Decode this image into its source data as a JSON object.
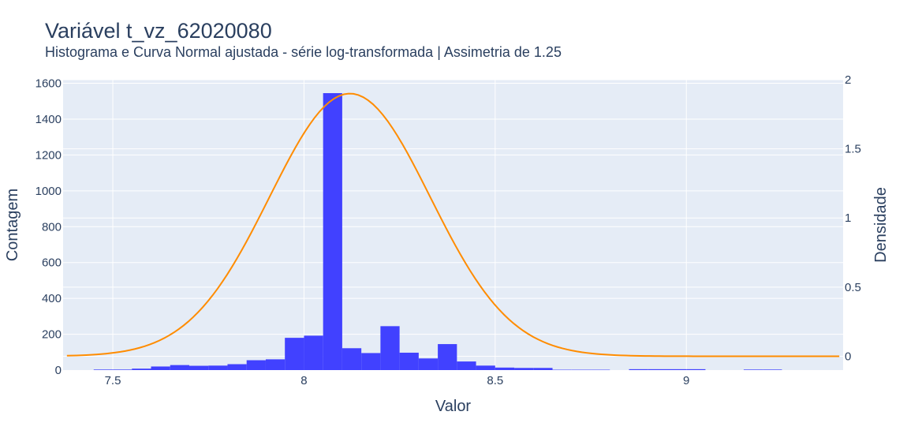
{
  "title": "Variável t_vz_62020080",
  "subtitle": "Histograma e Curva Normal ajustada - série log-transformada | Assimetria de 1.25",
  "colors": {
    "bars": "#3b3bff",
    "curve": "#ff8c00",
    "plot_bg": "#e5ecf6",
    "grid": "#ffffff",
    "text": "#2a3f5f"
  },
  "chart_data": {
    "type": "bar",
    "xlabel": "Valor",
    "ylabel": "Contagem",
    "y2label": "Densidade",
    "xlim": [
      7.37,
      9.41
    ],
    "ylim": [
      0,
      1620
    ],
    "y2lim": [
      -0.1,
      2.0
    ],
    "x_ticks": [
      7.5,
      8,
      8.5,
      9
    ],
    "x_tick_labels": [
      "7.5",
      "8",
      "8.5",
      "9"
    ],
    "y_ticks": [
      0,
      200,
      400,
      600,
      800,
      1000,
      1200,
      1400,
      1600
    ],
    "y_tick_labels": [
      "0",
      "200",
      "400",
      "600",
      "800",
      "1000",
      "1200",
      "1400",
      "1600"
    ],
    "y2_ticks": [
      0,
      0.5,
      1,
      1.5,
      2
    ],
    "y2_tick_labels": [
      "0",
      "0.5",
      "1",
      "1.5",
      "2"
    ],
    "grid": true,
    "histogram": {
      "name": "Contagem",
      "bins": [
        {
          "x0": 7.45,
          "x1": 7.5,
          "count": 3
        },
        {
          "x0": 7.5,
          "x1": 7.55,
          "count": 3
        },
        {
          "x0": 7.55,
          "x1": 7.6,
          "count": 8
        },
        {
          "x0": 7.6,
          "x1": 7.65,
          "count": 20
        },
        {
          "x0": 7.65,
          "x1": 7.7,
          "count": 28
        },
        {
          "x0": 7.7,
          "x1": 7.75,
          "count": 24
        },
        {
          "x0": 7.75,
          "x1": 7.8,
          "count": 25
        },
        {
          "x0": 7.8,
          "x1": 7.85,
          "count": 33
        },
        {
          "x0": 7.85,
          "x1": 7.9,
          "count": 55
        },
        {
          "x0": 7.9,
          "x1": 7.95,
          "count": 60
        },
        {
          "x0": 7.95,
          "x1": 8.0,
          "count": 180
        },
        {
          "x0": 8.0,
          "x1": 8.05,
          "count": 192
        },
        {
          "x0": 8.05,
          "x1": 8.1,
          "count": 1545
        },
        {
          "x0": 8.1,
          "x1": 8.15,
          "count": 122
        },
        {
          "x0": 8.15,
          "x1": 8.2,
          "count": 95
        },
        {
          "x0": 8.2,
          "x1": 8.25,
          "count": 245
        },
        {
          "x0": 8.25,
          "x1": 8.3,
          "count": 97
        },
        {
          "x0": 8.3,
          "x1": 8.35,
          "count": 65
        },
        {
          "x0": 8.35,
          "x1": 8.4,
          "count": 145
        },
        {
          "x0": 8.4,
          "x1": 8.45,
          "count": 48
        },
        {
          "x0": 8.45,
          "x1": 8.5,
          "count": 25
        },
        {
          "x0": 8.5,
          "x1": 8.55,
          "count": 14
        },
        {
          "x0": 8.55,
          "x1": 8.6,
          "count": 12
        },
        {
          "x0": 8.6,
          "x1": 8.65,
          "count": 12
        },
        {
          "x0": 8.65,
          "x1": 8.7,
          "count": 2
        },
        {
          "x0": 8.7,
          "x1": 8.75,
          "count": 2
        },
        {
          "x0": 8.75,
          "x1": 8.8,
          "count": 2
        },
        {
          "x0": 8.85,
          "x1": 8.9,
          "count": 5
        },
        {
          "x0": 8.9,
          "x1": 8.95,
          "count": 5
        },
        {
          "x0": 8.95,
          "x1": 9.0,
          "count": 5
        },
        {
          "x0": 9.0,
          "x1": 9.05,
          "count": 5
        },
        {
          "x0": 9.15,
          "x1": 9.2,
          "count": 3
        },
        {
          "x0": 9.2,
          "x1": 9.25,
          "count": 3
        }
      ]
    },
    "normal_curve": {
      "name": "Densidade",
      "mean": 8.12,
      "std": 0.21,
      "x_range": [
        7.38,
        9.4
      ],
      "points": 160
    }
  }
}
